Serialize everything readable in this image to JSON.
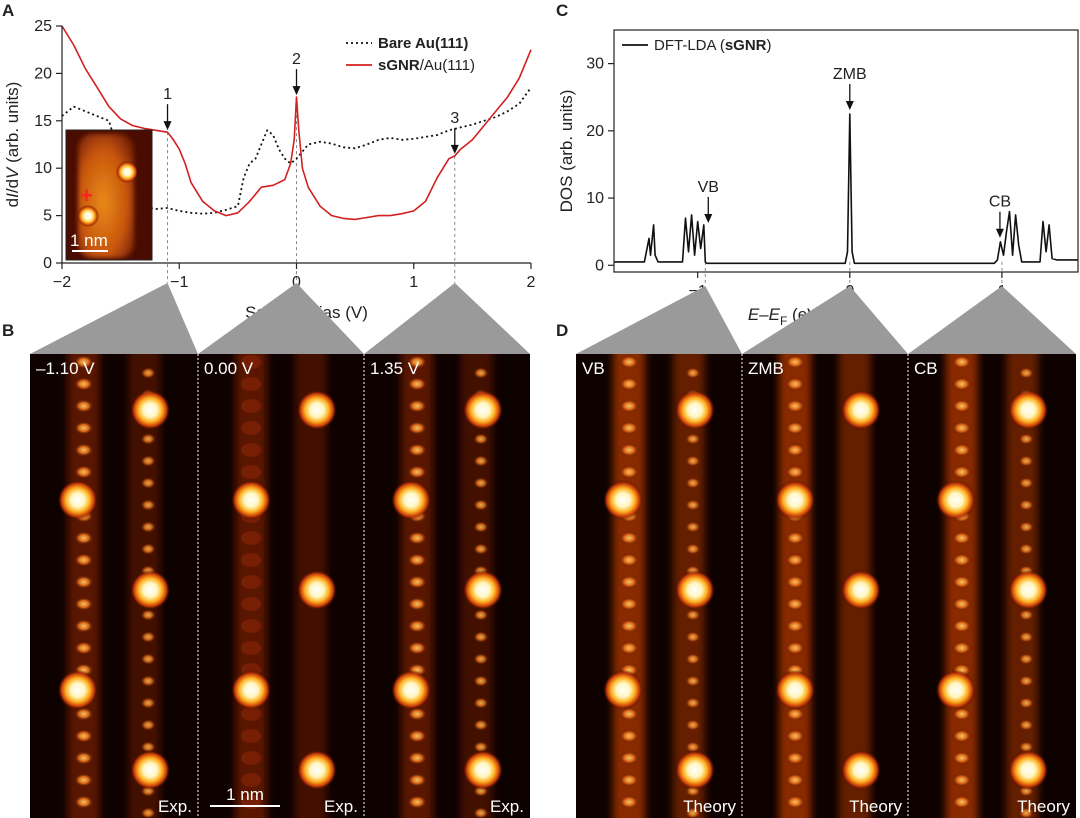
{
  "panels": {
    "a": "A",
    "b": "B",
    "c": "C",
    "d": "D"
  },
  "colors": {
    "bare": "#111111",
    "sgnr": "#d32020",
    "dft": "#111111",
    "guide": "#888888",
    "wedge": "#9a9a9a"
  },
  "chart_data": [
    {
      "id": "A",
      "type": "line",
      "xlabel": "Sample Bias (V)",
      "ylabel_parts": [
        "d",
        "I",
        "/d",
        "V",
        " (arb. units)"
      ],
      "xlim": [
        -2,
        2
      ],
      "ylim": [
        0,
        25
      ],
      "xticks": [
        -2,
        -1,
        0,
        1,
        2
      ],
      "yticks": [
        0,
        5,
        10,
        15,
        20,
        25
      ],
      "legend": {
        "position": "top-right",
        "entries": [
          {
            "series": "bare",
            "parts": [
              [
                "Bare ",
                "bold"
              ],
              [
                "Au(111)",
                "bold"
              ]
            ]
          },
          {
            "series": "sgnr",
            "parts": [
              [
                "sGNR",
                "bold"
              ],
              [
                "/Au(111)",
                "normal"
              ]
            ]
          }
        ]
      },
      "series": [
        {
          "key": "bare",
          "style": "dotted",
          "x": [
            -2.0,
            -1.9,
            -1.8,
            -1.7,
            -1.6,
            -1.55,
            -1.5,
            -1.4,
            -1.3,
            -1.2,
            -1.1,
            -1.0,
            -0.9,
            -0.8,
            -0.7,
            -0.6,
            -0.5,
            -0.45,
            -0.4,
            -0.35,
            -0.3,
            -0.25,
            -0.2,
            -0.15,
            -0.1,
            -0.05,
            0.0,
            0.1,
            0.2,
            0.3,
            0.4,
            0.5,
            0.6,
            0.7,
            0.8,
            0.9,
            1.0,
            1.1,
            1.2,
            1.3,
            1.4,
            1.5,
            1.6,
            1.7,
            1.8,
            1.9,
            2.0
          ],
          "y": [
            15.5,
            16.5,
            16.0,
            15.5,
            15.0,
            13.0,
            6.0,
            5.8,
            5.9,
            5.7,
            5.8,
            5.5,
            5.3,
            5.2,
            5.3,
            5.6,
            6.0,
            9.0,
            10.5,
            11.0,
            12.5,
            14.0,
            13.5,
            12.0,
            11.0,
            10.5,
            11.0,
            12.5,
            12.8,
            12.6,
            12.2,
            12.1,
            12.5,
            13.0,
            13.2,
            13.0,
            13.1,
            13.3,
            13.5,
            14.0,
            14.3,
            14.6,
            15.0,
            15.4,
            16.0,
            16.8,
            18.5
          ]
        },
        {
          "key": "sgnr",
          "style": "solid",
          "x": [
            -2.0,
            -1.9,
            -1.8,
            -1.7,
            -1.6,
            -1.5,
            -1.4,
            -1.3,
            -1.2,
            -1.1,
            -1.05,
            -1.0,
            -0.95,
            -0.9,
            -0.8,
            -0.7,
            -0.6,
            -0.5,
            -0.4,
            -0.3,
            -0.2,
            -0.1,
            -0.05,
            -0.02,
            0.0,
            0.02,
            0.05,
            0.1,
            0.2,
            0.3,
            0.4,
            0.5,
            0.6,
            0.7,
            0.8,
            0.9,
            1.0,
            1.1,
            1.2,
            1.3,
            1.35,
            1.4,
            1.5,
            1.6,
            1.7,
            1.8,
            1.9,
            2.0
          ],
          "y": [
            25.0,
            23.0,
            20.5,
            18.5,
            16.5,
            15.2,
            14.5,
            14.2,
            14.0,
            13.8,
            13.0,
            12.0,
            10.5,
            8.5,
            6.5,
            5.5,
            5.0,
            5.3,
            6.5,
            8.0,
            8.2,
            8.8,
            10.5,
            13.0,
            17.5,
            14.0,
            10.0,
            8.0,
            6.0,
            5.0,
            4.7,
            4.6,
            4.8,
            5.0,
            5.0,
            5.2,
            5.5,
            6.5,
            9.0,
            11.0,
            11.3,
            12.0,
            13.0,
            14.5,
            16.0,
            17.5,
            19.5,
            22.5
          ]
        }
      ],
      "markers": [
        {
          "label": "1",
          "x": -1.1
        },
        {
          "label": "2",
          "x": 0.0
        },
        {
          "label": "3",
          "x": 1.35
        }
      ],
      "inset": {
        "scalebar": "1 nm",
        "marker": "+"
      }
    },
    {
      "id": "C",
      "type": "line",
      "xlabel_parts": [
        [
          "E",
          "italic"
        ],
        [
          "–",
          "normal"
        ],
        [
          "E",
          "italic"
        ],
        [
          "F",
          "sub"
        ],
        [
          " (eV)",
          "normal"
        ]
      ],
      "ylabel": "DOS (arb. units)",
      "xlim": [
        -1.55,
        1.5
      ],
      "ylim": [
        -1,
        35
      ],
      "xticks": [
        -1,
        0,
        1
      ],
      "yticks": [
        0,
        10,
        20,
        30
      ],
      "legend": {
        "position": "top-left",
        "entries": [
          {
            "series": "dft",
            "parts": [
              [
                "DFT-LDA (",
                "normal"
              ],
              [
                "sGNR",
                "bold"
              ],
              [
                ")",
                "normal"
              ]
            ]
          }
        ]
      },
      "series": [
        {
          "key": "dft",
          "style": "solid",
          "x": [
            -1.55,
            -1.35,
            -1.32,
            -1.31,
            -1.29,
            -1.28,
            -1.26,
            -1.25,
            -1.23,
            -1.2,
            -1.1,
            -1.08,
            -1.06,
            -1.04,
            -1.02,
            -1.0,
            -0.98,
            -0.96,
            -0.95,
            -0.94,
            -0.92,
            -0.9,
            -0.5,
            -0.03,
            -0.015,
            0.0,
            0.015,
            0.03,
            0.5,
            0.93,
            0.95,
            0.97,
            0.99,
            1.01,
            1.03,
            1.05,
            1.07,
            1.09,
            1.11,
            1.13,
            1.15,
            1.17,
            1.2,
            1.25,
            1.27,
            1.29,
            1.31,
            1.33,
            1.36,
            1.5
          ],
          "y": [
            0.5,
            0.5,
            4.0,
            1.5,
            6.0,
            1.5,
            0.5,
            0.5,
            0.5,
            0.5,
            0.5,
            7.0,
            2.0,
            7.5,
            1.5,
            6.5,
            2.5,
            6.0,
            0.5,
            0.3,
            0.3,
            0.3,
            0.3,
            0.3,
            2.0,
            22.5,
            2.0,
            0.3,
            0.3,
            0.3,
            0.3,
            0.8,
            3.5,
            1.5,
            5.0,
            8.0,
            1.5,
            7.5,
            3.0,
            0.5,
            0.5,
            0.5,
            0.5,
            0.5,
            6.5,
            2.0,
            6.0,
            1.0,
            0.8,
            0.8
          ]
        }
      ],
      "markers": [
        {
          "label": "VB",
          "x": -0.95
        },
        {
          "label": "ZMB",
          "x": 0.0
        },
        {
          "label": "CB",
          "x": 1.0
        }
      ]
    }
  ],
  "images_b": [
    {
      "label": "–1.10 V",
      "footer": "Exp."
    },
    {
      "label": "0.00 V",
      "footer": "Exp."
    },
    {
      "label": "1.35 V",
      "footer": "Exp."
    }
  ],
  "images_d": [
    {
      "label": "VB",
      "footer": "Theory"
    },
    {
      "label": "ZMB",
      "footer": "Theory"
    },
    {
      "label": "CB",
      "footer": "Theory"
    }
  ],
  "scalebar_b": "1 nm"
}
